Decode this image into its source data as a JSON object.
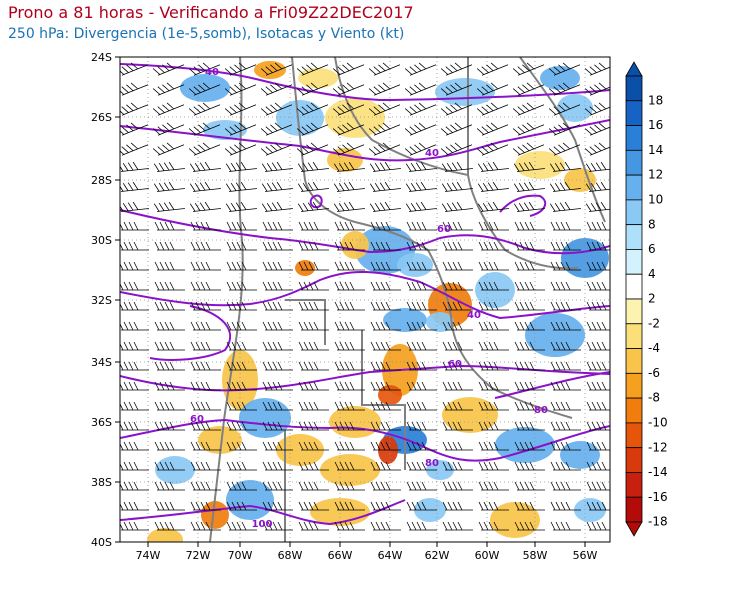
{
  "header": {
    "title": "Prono a 81 horas - Verificando a Fri09Z22DEC2017",
    "subtitle": "250 hPa: Divergencia (1e-5,somb), Isotacas y Viento (kt)"
  },
  "map": {
    "lat_labels": [
      "24S",
      "26S",
      "28S",
      "30S",
      "32S",
      "34S",
      "36S",
      "38S",
      "40S"
    ],
    "lon_labels": [
      "74W",
      "72W",
      "70W",
      "68W",
      "66W",
      "64W",
      "62W",
      "60W",
      "58W",
      "56W"
    ],
    "isotach_labels": [
      "40",
      "40",
      "60",
      "40",
      "60",
      "60",
      "80",
      "80",
      "100"
    ]
  },
  "colorbar": {
    "labels": [
      "18",
      "16",
      "14",
      "12",
      "10",
      "8",
      "6",
      "4",
      "2",
      "-2",
      "-4",
      "-6",
      "-8",
      "-10",
      "-12",
      "-14",
      "-16",
      "-18"
    ],
    "colors": [
      "#0a4fa8",
      "#1663c4",
      "#2a7fd8",
      "#4597e2",
      "#66b0ee",
      "#8ac9f4",
      "#aee0fb",
      "#d2f3fd",
      "#ffffff",
      "#fdf3b0",
      "#fbe07a",
      "#f8c44a",
      "#f5a01e",
      "#f07d0e",
      "#e5560b",
      "#d83a0c",
      "#c8200e",
      "#b30a0a"
    ]
  },
  "colors": {
    "isotach": "#8a12c9",
    "border": "#808080",
    "title": "#b0001e",
    "subtitle": "#1a73b5"
  }
}
